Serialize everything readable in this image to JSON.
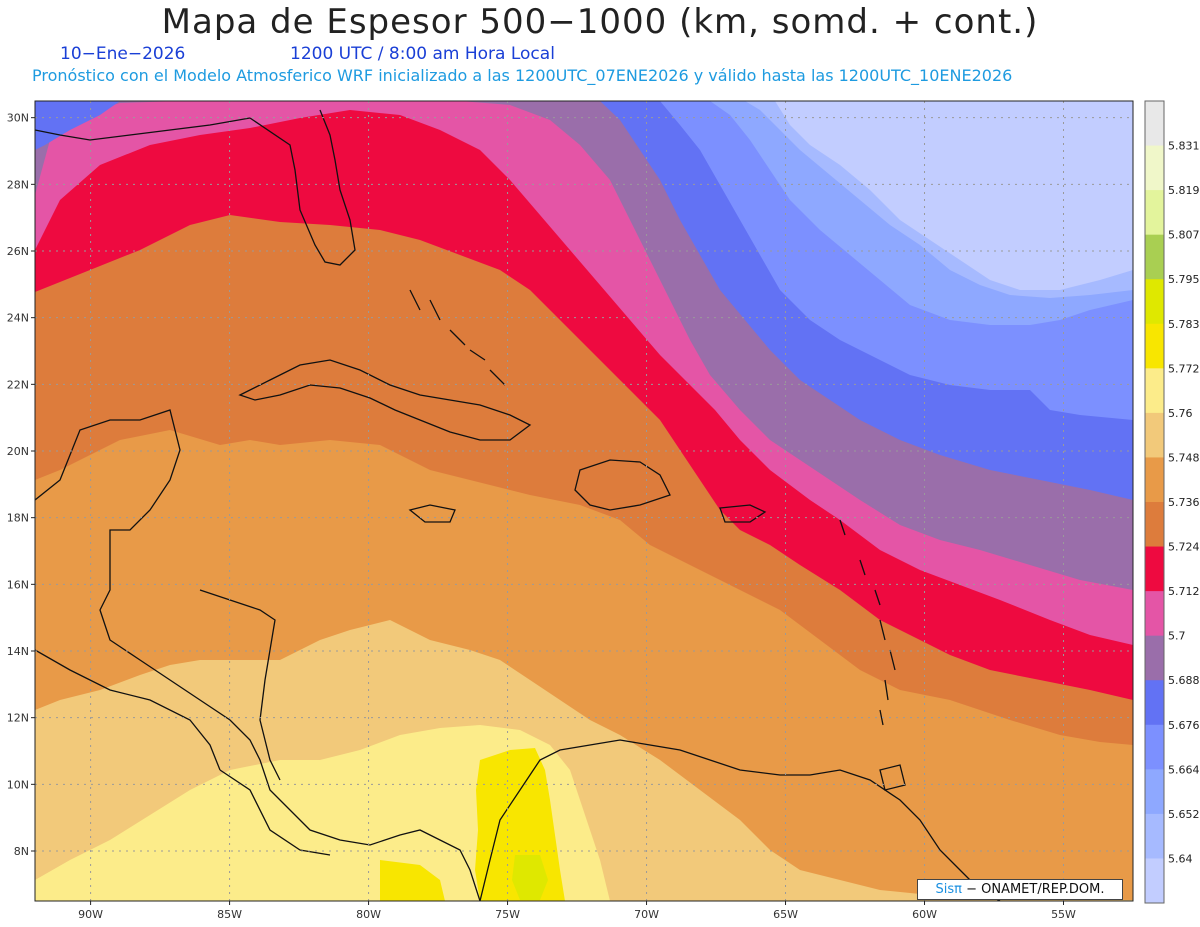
{
  "title": "Mapa de Espesor 500−1000 (km, somd. + cont.)",
  "date_label": "10−Ene−2026",
  "time_label": "1200 UTC / 8:00 am Hora Local",
  "forecast_label": "Pronóstico con el Modelo Atmosferico WRF inicializado a las 1200UTC_07ENE2026 y válido hasta las  1200UTC_10ENE2026",
  "credit": {
    "brand": "Sisπ",
    "text": " − ONAMET/REP.DOM."
  },
  "map": {
    "lon_range": [
      -92,
      -52.5
    ],
    "lat_range": [
      6.5,
      30.5
    ],
    "lat_ticks": [
      {
        "value": 30,
        "label": "30N"
      },
      {
        "value": 28,
        "label": "28N"
      },
      {
        "value": 26,
        "label": "26N"
      },
      {
        "value": 24,
        "label": "24N"
      },
      {
        "value": 22,
        "label": "22N"
      },
      {
        "value": 20,
        "label": "20N"
      },
      {
        "value": 18,
        "label": "18N"
      },
      {
        "value": 16,
        "label": "16N"
      },
      {
        "value": 14,
        "label": "14N"
      },
      {
        "value": 12,
        "label": "12N"
      },
      {
        "value": 10,
        "label": "10N"
      },
      {
        "value": 8,
        "label": "8N"
      }
    ],
    "lon_ticks": [
      {
        "value": -90,
        "label": "90W"
      },
      {
        "value": -85,
        "label": "85W"
      },
      {
        "value": -80,
        "label": "80W"
      },
      {
        "value": -75,
        "label": "75W"
      },
      {
        "value": -70,
        "label": "70W"
      },
      {
        "value": -65,
        "label": "65W"
      },
      {
        "value": -60,
        "label": "60W"
      },
      {
        "value": -55,
        "label": "55W"
      }
    ],
    "grid": "dotted"
  },
  "colorbar": {
    "labels": [
      "5.64",
      "5.652",
      "5.664",
      "5.676",
      "5.688",
      "5.7",
      "5.712",
      "5.724",
      "5.736",
      "5.748",
      "5.76",
      "5.772",
      "5.783",
      "5.795",
      "5.807",
      "5.819",
      "5.831"
    ],
    "colors": [
      "#c2cdff",
      "#a6baff",
      "#8ea8ff",
      "#7c90ff",
      "#6272f4",
      "#9a6eaa",
      "#e455a6",
      "#ee0a40",
      "#dd7c3c",
      "#e89a48",
      "#f2c97a",
      "#fcec8a",
      "#f8e600",
      "#dfe800",
      "#a9cf52",
      "#e3f49c",
      "#f0f7c9",
      "#e8e8e8"
    ]
  },
  "colors": {
    "c5640": "#c2cdff",
    "c5652": "#a6baff",
    "c5664": "#8ea8ff",
    "c5676": "#7c90ff",
    "c5688": "#6272f4",
    "c5700": "#9a6eaa",
    "c5712": "#e455a6",
    "c5724": "#ee0a40",
    "c5736": "#dd7c3c",
    "c5748": "#e89a48",
    "c5760": "#f2c97a",
    "c5772": "#fcec8a",
    "c5783": "#f8e600",
    "c5795": "#dfe800"
  }
}
